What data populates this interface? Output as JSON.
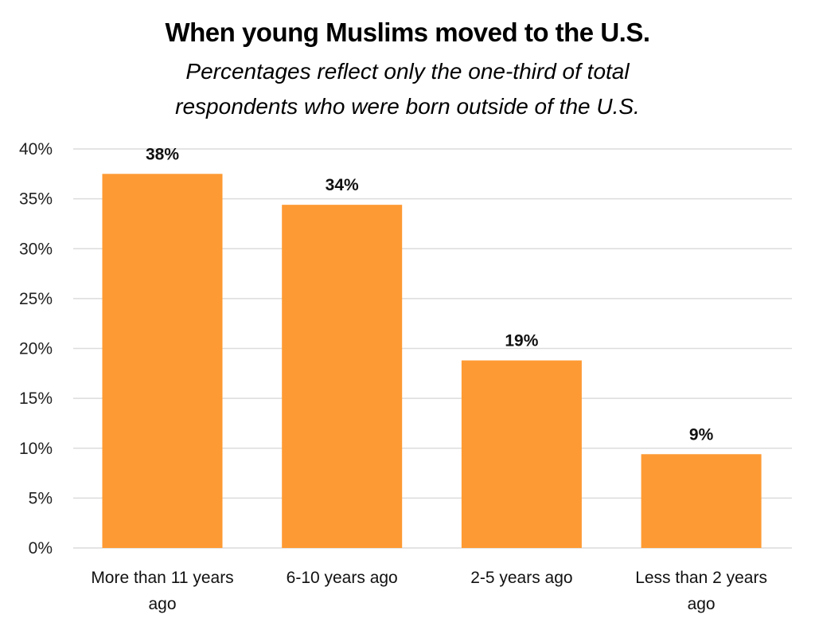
{
  "chart_data": {
    "type": "bar",
    "title": "When young Muslims moved to the U.S.",
    "subtitle_lines": [
      "Percentages reflect only the one-third of total",
      "respondents who were born outside of the U.S."
    ],
    "xlabel": "",
    "ylabel": "",
    "categories": [
      [
        "More than 11 years",
        "ago"
      ],
      [
        "6-10 years ago"
      ],
      [
        "2-5 years ago"
      ],
      [
        "Less than 2 years",
        "ago"
      ]
    ],
    "values": [
      37.5,
      34.4,
      18.8,
      9.4
    ],
    "data_labels": [
      "38%",
      "34%",
      "19%",
      "9%"
    ],
    "ylim": [
      0,
      40
    ],
    "yticks": [
      0,
      5,
      10,
      15,
      20,
      25,
      30,
      35,
      40
    ],
    "ytick_labels": [
      "0%",
      "5%",
      "10%",
      "15%",
      "20%",
      "25%",
      "30%",
      "35%",
      "40%"
    ],
    "grid": true,
    "legend": "none",
    "bar_color": "#fe9a33",
    "grid_color": "#dcdcdc"
  }
}
